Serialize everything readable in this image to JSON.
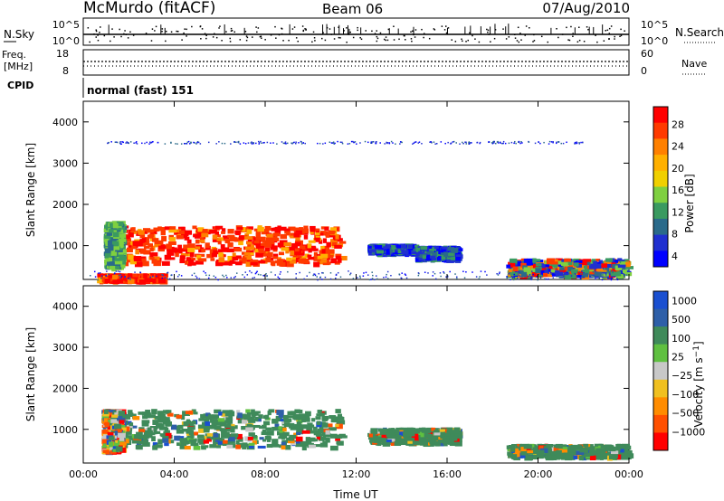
{
  "header": {
    "station": "McMurdo (fitACF)",
    "beam": "Beam 06",
    "date": "07/Aug/2010"
  },
  "noise_panel": {
    "left_label": "N.Sky",
    "right_label": "N.Search",
    "left_ticks": [
      "10^5",
      "10^0"
    ],
    "right_ticks": [
      "10^5",
      "10^0"
    ]
  },
  "freq_panel": {
    "left_label_line1": "Freq.",
    "left_label_line2": "[MHz]",
    "left_ticks": [
      "18",
      "8"
    ],
    "right_label": "Nave",
    "right_ticks": [
      "60",
      "0"
    ]
  },
  "cpid_panel": {
    "label": "CPID",
    "text": "normal (fast) 151"
  },
  "chart_data": [
    {
      "type": "heatmap",
      "title": "",
      "ylabel": "Slant Range [km]",
      "xlabel": "",
      "y_ticks": [
        1000,
        2000,
        3000,
        4000
      ],
      "ylim": [
        180,
        4500
      ],
      "x_ticks": [
        "00:00",
        "04:00",
        "08:00",
        "12:00",
        "16:00",
        "20:00",
        "00:00"
      ],
      "colorbar": {
        "label": "Power [dB]",
        "ticks": [
          "28",
          "24",
          "20",
          "16",
          "12",
          "8",
          "4"
        ],
        "colors": [
          "#ff0000",
          "#ff3a00",
          "#ff8000",
          "#ffb000",
          "#f0d000",
          "#7fd040",
          "#3a9a60",
          "#2a6a8a",
          "#2030d0",
          "#0000ff"
        ]
      },
      "regions": [
        {
          "t0": 1.2,
          "t1": 11.3,
          "r0": 600,
          "r1": 1500,
          "level": "high"
        },
        {
          "t0": 0.9,
          "t1": 1.6,
          "r0": 500,
          "r1": 1600,
          "level": "mid"
        },
        {
          "t0": 0.6,
          "t1": 3.4,
          "r0": 180,
          "r1": 330,
          "level": "high"
        },
        {
          "t0": 12.5,
          "t1": 14.5,
          "r0": 850,
          "r1": 1050,
          "level": "low"
        },
        {
          "t0": 14.6,
          "t1": 16.4,
          "r0": 700,
          "r1": 1000,
          "level": "low"
        },
        {
          "t0": 18.6,
          "t1": 23.9,
          "r0": 300,
          "r1": 700,
          "level": "mixed"
        },
        {
          "t0": 0.2,
          "t1": 24.0,
          "r0": 180,
          "r1": 400,
          "level": "scatter"
        },
        {
          "t0": 1.0,
          "t1": 22.0,
          "r0": 3480,
          "r1": 3540,
          "level": "line"
        }
      ]
    },
    {
      "type": "heatmap",
      "title": "",
      "ylabel": "Slant Range [km]",
      "xlabel": "Time UT",
      "y_ticks": [
        1000,
        2000,
        3000,
        4000
      ],
      "ylim": [
        180,
        4500
      ],
      "x_ticks": [
        "00:00",
        "04:00",
        "08:00",
        "12:00",
        "16:00",
        "20:00",
        "00:00"
      ],
      "colorbar": {
        "label": "Velocity [m s",
        "ticks": [
          "1000",
          "500",
          "100",
          "25",
          "−25",
          "−100",
          "−500",
          "−1000"
        ],
        "colors": [
          "#1a4fd0",
          "#2e5fa8",
          "#3f8a5a",
          "#5fc040",
          "#c8c8c8",
          "#f0c020",
          "#ff8c00",
          "#ff5000",
          "#ff0000"
        ]
      },
      "regions": [
        {
          "t0": 1.2,
          "t1": 11.3,
          "r0": 600,
          "r1": 1500,
          "level": "green"
        },
        {
          "t0": 0.8,
          "t1": 1.6,
          "r0": 500,
          "r1": 1500,
          "level": "mixed"
        },
        {
          "t0": 18.6,
          "t1": 23.9,
          "r0": 350,
          "r1": 650,
          "level": "green"
        },
        {
          "t0": 12.5,
          "t1": 16.4,
          "r0": 700,
          "r1": 1050,
          "level": "green"
        }
      ]
    }
  ]
}
